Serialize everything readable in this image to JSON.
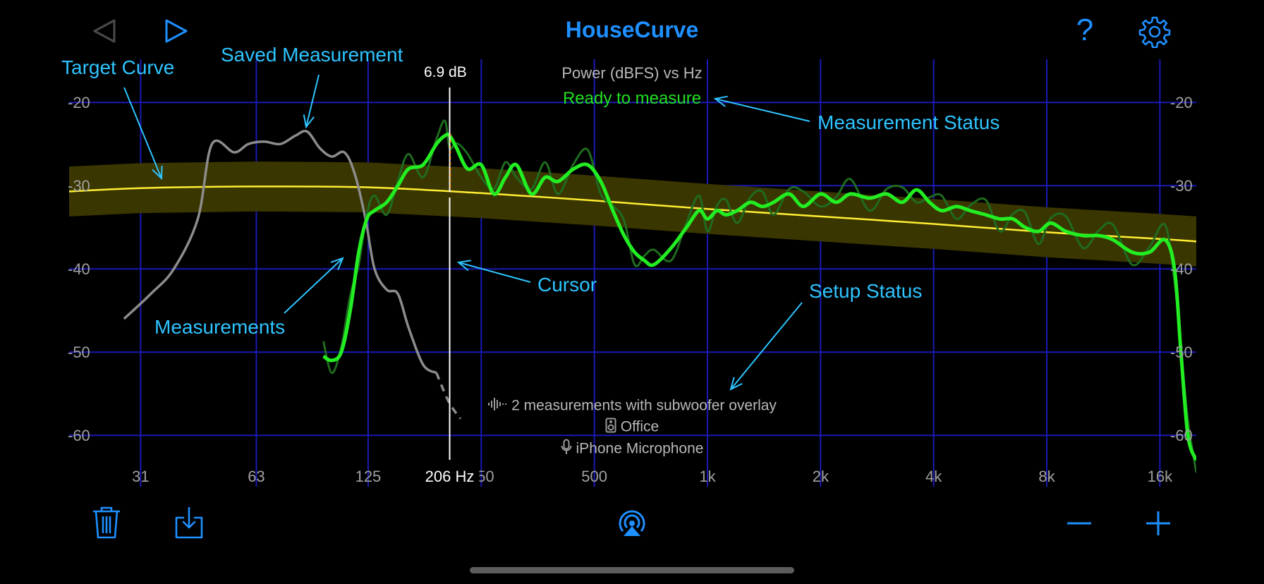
{
  "app": {
    "title": "HouseCurve"
  },
  "toolbar_top": {
    "back_icon": "triangle-left-icon",
    "play_icon": "triangle-right-icon",
    "help_label": "?",
    "settings_icon": "gear-icon"
  },
  "chart": {
    "subtitle": "Power (dBFS) vs Hz",
    "status": "Ready to measure",
    "cursor": {
      "freq_label": "206 Hz",
      "value_label": "6.9 dB"
    },
    "setup": {
      "measurements": "2 measurements with subwoofer overlay",
      "room": "Office",
      "microphone": "iPhone Microphone"
    }
  },
  "annotations": {
    "target_curve": "Target Curve",
    "saved_measurement": "Saved Measurement",
    "measurement_status": "Measurement Status",
    "cursor": "Cursor",
    "measurements": "Measurements",
    "setup_status": "Setup Status"
  },
  "colors": {
    "accent": "#1e90ff",
    "annotation": "#2ec4ff",
    "grid": "#1a1ab4",
    "measurement": "#22ee22",
    "target": "#ffee33",
    "target_band": "#3a3600",
    "saved": "#8c8c8c",
    "status_ok": "#22e022"
  },
  "toolbar_bottom": {
    "delete_icon": "trash-icon",
    "export_icon": "download-tray-icon",
    "airplay_icon": "airplay-icon",
    "zoom_out_icon": "minus-icon",
    "zoom_in_icon": "plus-icon"
  },
  "chart_data": {
    "type": "line",
    "x_scale": "log",
    "xlim": [
      20,
      20000
    ],
    "ylim": [
      -66,
      -16
    ],
    "x_tick_labels": [
      "31",
      "63",
      "125",
      "250",
      "500",
      "1k",
      "2k",
      "4k",
      "8k",
      "16k"
    ],
    "x_ticks": [
      31,
      63,
      125,
      250,
      500,
      1000,
      2000,
      4000,
      8000,
      16000
    ],
    "y_ticks": [
      -20,
      -30,
      -40,
      -50,
      -60
    ],
    "y_tick_labels": [
      "-20",
      "-30",
      "-40",
      "-50",
      "-60"
    ],
    "grid": true,
    "cursor_x": 206,
    "target": {
      "x": [
        20,
        31,
        63,
        125,
        250,
        500,
        1000,
        2000,
        4000,
        8000,
        16000,
        20000
      ],
      "y": [
        -30.7,
        -30.3,
        -30.1,
        -30.2,
        -30.9,
        -31.8,
        -32.8,
        -33.7,
        -34.6,
        -35.6,
        -36.4,
        -36.7
      ],
      "band_half_width": 3
    },
    "series": [
      {
        "role": "saved",
        "x": [
          28,
          33,
          38,
          44,
          48,
          55,
          60,
          66,
          73,
          80,
          86,
          93,
          100,
          108,
          115,
          123,
          130,
          140,
          150,
          160,
          175,
          190,
          205,
          220
        ],
        "y": [
          -46,
          -43,
          -40,
          -34,
          -25,
          -26,
          -25,
          -24.7,
          -25,
          -24,
          -23.5,
          -25.5,
          -26.5,
          -26,
          -28.5,
          -34,
          -40,
          -42.5,
          -43,
          -47,
          -51.5,
          -52.5,
          -56,
          -58
        ]
      },
      {
        "role": "measurement",
        "x": [
          95,
          100,
          106,
          112,
          118,
          124,
          130,
          140,
          150,
          160,
          175,
          190,
          200,
          206,
          215,
          230,
          250,
          270,
          290,
          310,
          340,
          370,
          400,
          440,
          480,
          520,
          560,
          600,
          640,
          680,
          720,
          800,
          880,
          950,
          1000,
          1060,
          1120,
          1200,
          1300,
          1400,
          1500,
          1650,
          1800,
          2000,
          2200,
          2400,
          2700,
          3000,
          3300,
          3600,
          3900,
          4200,
          4600,
          5000,
          5500,
          6000,
          6500,
          7000,
          7600,
          8200,
          9000,
          10000,
          11000,
          12000,
          13500,
          15000,
          16500,
          17500,
          18200,
          19000,
          20000
        ],
        "y": [
          -50.5,
          -51,
          -50,
          -45,
          -38,
          -34,
          -33,
          -32,
          -30,
          -28,
          -27.5,
          -25,
          -24,
          -24,
          -25.5,
          -28,
          -27.5,
          -31,
          -29,
          -27.5,
          -31,
          -29,
          -29.5,
          -28,
          -27.5,
          -29.5,
          -33,
          -36,
          -38,
          -39,
          -39.5,
          -37.5,
          -35,
          -33,
          -34,
          -33,
          -33.5,
          -33,
          -32,
          -32.5,
          -32,
          -31,
          -32.5,
          -31,
          -32,
          -31,
          -31.5,
          -31,
          -32,
          -30.5,
          -32,
          -33,
          -32.5,
          -33,
          -33.5,
          -34,
          -34,
          -35,
          -35.5,
          -34.5,
          -35.5,
          -36,
          -36,
          -36.5,
          -38,
          -38,
          -36.5,
          -40,
          -50,
          -60,
          -63
        ]
      }
    ]
  }
}
